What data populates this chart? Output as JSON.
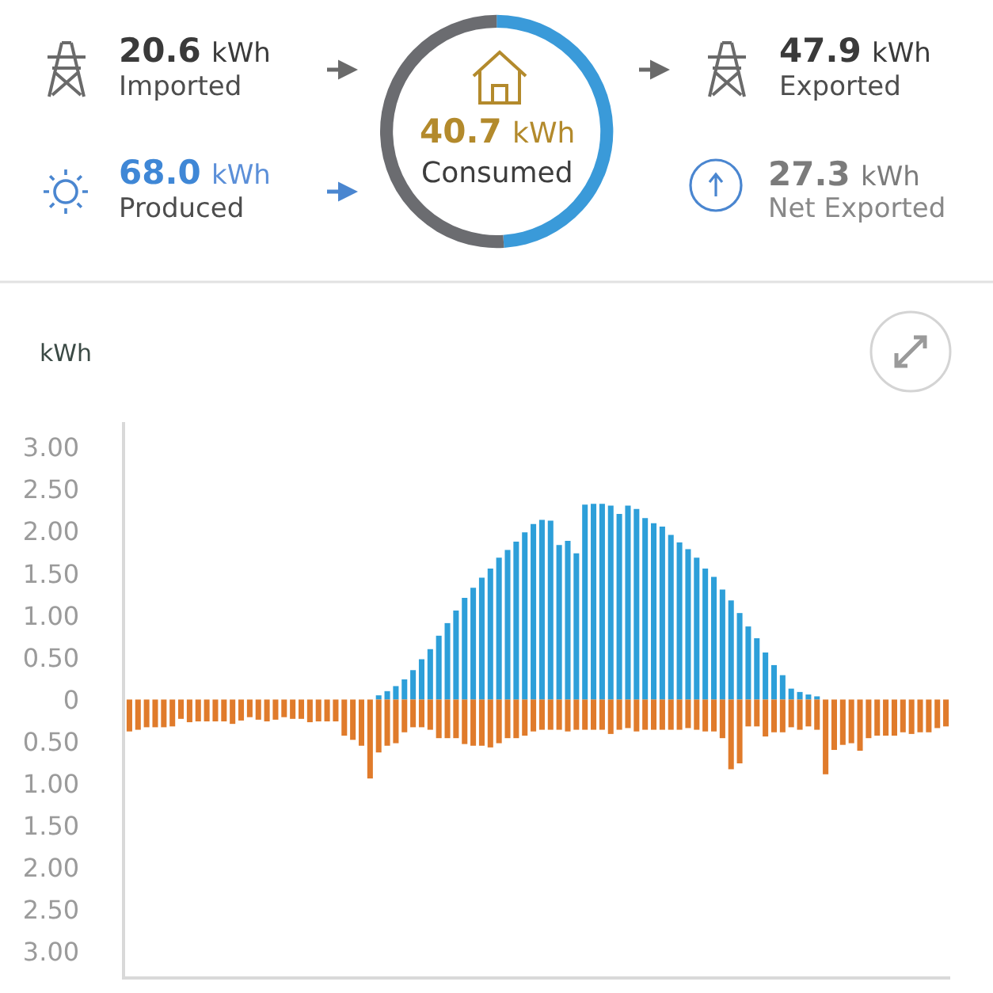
{
  "chart_data": [
    {
      "type": "other",
      "annotations": [
        "20.6 kWh",
        "Imported",
        "47.9 kWh",
        "Exported",
        "68.0 kWh",
        "Produced",
        "27.3 kWh",
        "Net Exported"
      ]
    },
    {
      "type": "donut",
      "categories": [
        null,
        null
      ],
      "values": [
        49,
        51
      ],
      "colors": [
        "#3a9ad9",
        "#6b6c70"
      ],
      "annotations": [
        "40.7 kWh",
        "Consumed"
      ]
    },
    {
      "type": "bar",
      "ylabel": "kWh",
      "categories": [
        null,
        null,
        null,
        null,
        null,
        null,
        null,
        null,
        null,
        null,
        null,
        null,
        null,
        null,
        null,
        null,
        null,
        null,
        null,
        null,
        null,
        null,
        null,
        null,
        null,
        null,
        null,
        null,
        null,
        null,
        null,
        null,
        null,
        null,
        null,
        null,
        null,
        null,
        null,
        null,
        null,
        null,
        null,
        null,
        null,
        null,
        null,
        null,
        null,
        null,
        null,
        null,
        null,
        null,
        null,
        null,
        null,
        null,
        null,
        null,
        null,
        null,
        null,
        null,
        null,
        null,
        null,
        null,
        null,
        null,
        null,
        null,
        null,
        null,
        null,
        null,
        null,
        null,
        null,
        null,
        null,
        null,
        null,
        null,
        null,
        null,
        null,
        null,
        null,
        null,
        null,
        null,
        null,
        null,
        null,
        null
      ],
      "stacked": true,
      "series": [
        {
          "color": "#2d9fd9",
          "values": [
            0,
            0,
            0,
            0,
            0,
            0,
            0,
            0,
            0,
            0,
            0,
            0,
            0,
            0,
            0,
            0,
            0,
            0,
            0,
            0,
            0,
            0,
            0,
            0,
            0,
            0,
            0,
            0,
            0,
            0.05,
            0.1,
            0.16,
            0.24,
            0.35,
            0.48,
            0.6,
            0.76,
            0.91,
            1.06,
            1.21,
            1.33,
            1.45,
            1.56,
            1.69,
            1.78,
            1.88,
            1.99,
            2.09,
            2.14,
            2.13,
            1.84,
            1.89,
            1.74,
            2.32,
            2.33,
            2.33,
            2.31,
            2.21,
            2.31,
            2.27,
            2.16,
            2.1,
            2.06,
            1.96,
            1.87,
            1.79,
            1.69,
            1.56,
            1.46,
            1.31,
            1.18,
            1.03,
            0.87,
            0.73,
            0.56,
            0.41,
            0.29,
            0.13,
            0.09,
            0.06,
            0.03,
            0,
            0,
            0,
            0,
            0,
            0,
            0,
            0,
            0,
            0,
            0,
            0,
            0,
            0,
            0
          ]
        },
        {
          "color": "#e07b2b",
          "values": [
            -0.38,
            -0.36,
            -0.33,
            -0.33,
            -0.33,
            -0.32,
            -0.23,
            -0.27,
            -0.26,
            -0.26,
            -0.26,
            -0.26,
            -0.29,
            -0.25,
            -0.21,
            -0.24,
            -0.26,
            -0.24,
            -0.21,
            -0.23,
            -0.23,
            -0.27,
            -0.26,
            -0.26,
            -0.26,
            -0.43,
            -0.48,
            -0.55,
            -0.94,
            -0.63,
            -0.55,
            -0.52,
            -0.39,
            -0.33,
            -0.33,
            -0.36,
            -0.46,
            -0.46,
            -0.46,
            -0.53,
            -0.55,
            -0.55,
            -0.57,
            -0.52,
            -0.46,
            -0.46,
            -0.43,
            -0.38,
            -0.36,
            -0.36,
            -0.36,
            -0.38,
            -0.36,
            -0.36,
            -0.36,
            -0.36,
            -0.41,
            -0.36,
            -0.34,
            -0.38,
            -0.36,
            -0.36,
            -0.36,
            -0.36,
            -0.36,
            -0.34,
            -0.36,
            -0.38,
            -0.38,
            -0.46,
            -0.83,
            -0.76,
            -0.32,
            -0.32,
            -0.44,
            -0.39,
            -0.39,
            -0.33,
            -0.36,
            -0.32,
            -0.36,
            -0.89,
            -0.6,
            -0.54,
            -0.52,
            -0.61,
            -0.46,
            -0.43,
            -0.43,
            -0.43,
            -0.39,
            -0.41,
            -0.39,
            -0.39,
            -0.34,
            -0.32
          ]
        }
      ],
      "ylim": [
        -3.3,
        3.3
      ],
      "yticks": [
        {
          "value": 3,
          "label": "3.00"
        },
        {
          "value": 2.5,
          "label": "2.50"
        },
        {
          "value": 2,
          "label": "2.00"
        },
        {
          "value": 1.5,
          "label": "1.50"
        },
        {
          "value": 1,
          "label": "1.00"
        },
        {
          "value": 0.5,
          "label": "0.50"
        },
        0,
        {
          "value": -0.5,
          "label": "0.50"
        },
        {
          "value": -1,
          "label": "1.00"
        },
        {
          "value": -1.5,
          "label": "1.50"
        },
        {
          "value": -2,
          "label": "2.00"
        },
        {
          "value": -2.5,
          "label": "2.50"
        },
        {
          "value": -3,
          "label": "3.00"
        }
      ],
      "tick_labels": "y"
    }
  ]
}
